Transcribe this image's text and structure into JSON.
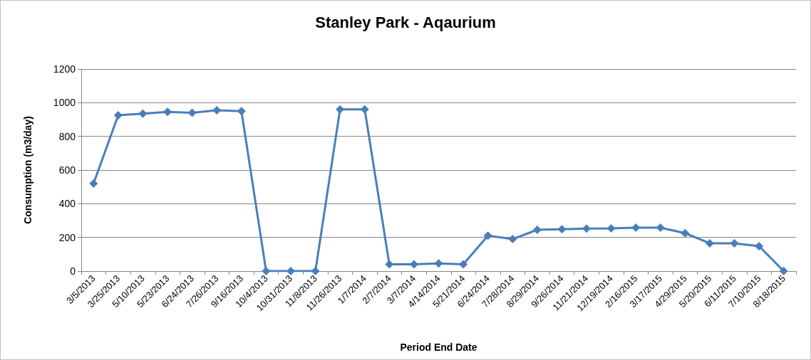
{
  "chart_data": {
    "type": "line",
    "title": "Stanley Park - Aqaurium",
    "xlabel": "Period End Date",
    "ylabel": "Consumption (m3/day)",
    "categories": [
      "3/5/2013",
      "3/25/2013",
      "5/10/2013",
      "5/23/2013",
      "6/24/2013",
      "7/26/2013",
      "9/16/2013",
      "10/4/2013",
      "10/31/2013",
      "11/8/2013",
      "11/26/2013",
      "1/7/2014",
      "2/7/2014",
      "3/7/2014",
      "4/14/2014",
      "5/21/2014",
      "6/24/2014",
      "7/28/2014",
      "8/29/2014",
      "9/26/2014",
      "11/21/2014",
      "12/19/2014",
      "2/16/2015",
      "3/17/2015",
      "4/29/2015",
      "5/20/2015",
      "6/11/2015",
      "7/10/2015",
      "8/18/2015"
    ],
    "series": [
      {
        "color": "#4a7ebb",
        "values": [
          520,
          925,
          935,
          945,
          940,
          955,
          950,
          0,
          0,
          0,
          960,
          960,
          40,
          40,
          45,
          40,
          210,
          190,
          245,
          248,
          252,
          253,
          258,
          258,
          225,
          165,
          165,
          148,
          0
        ]
      }
    ],
    "ylim": [
      0,
      1200
    ],
    "yticks": [
      0,
      200,
      400,
      600,
      800,
      1000,
      1200
    ],
    "grid": "y",
    "marker": "diamond",
    "line_style": "solid"
  }
}
